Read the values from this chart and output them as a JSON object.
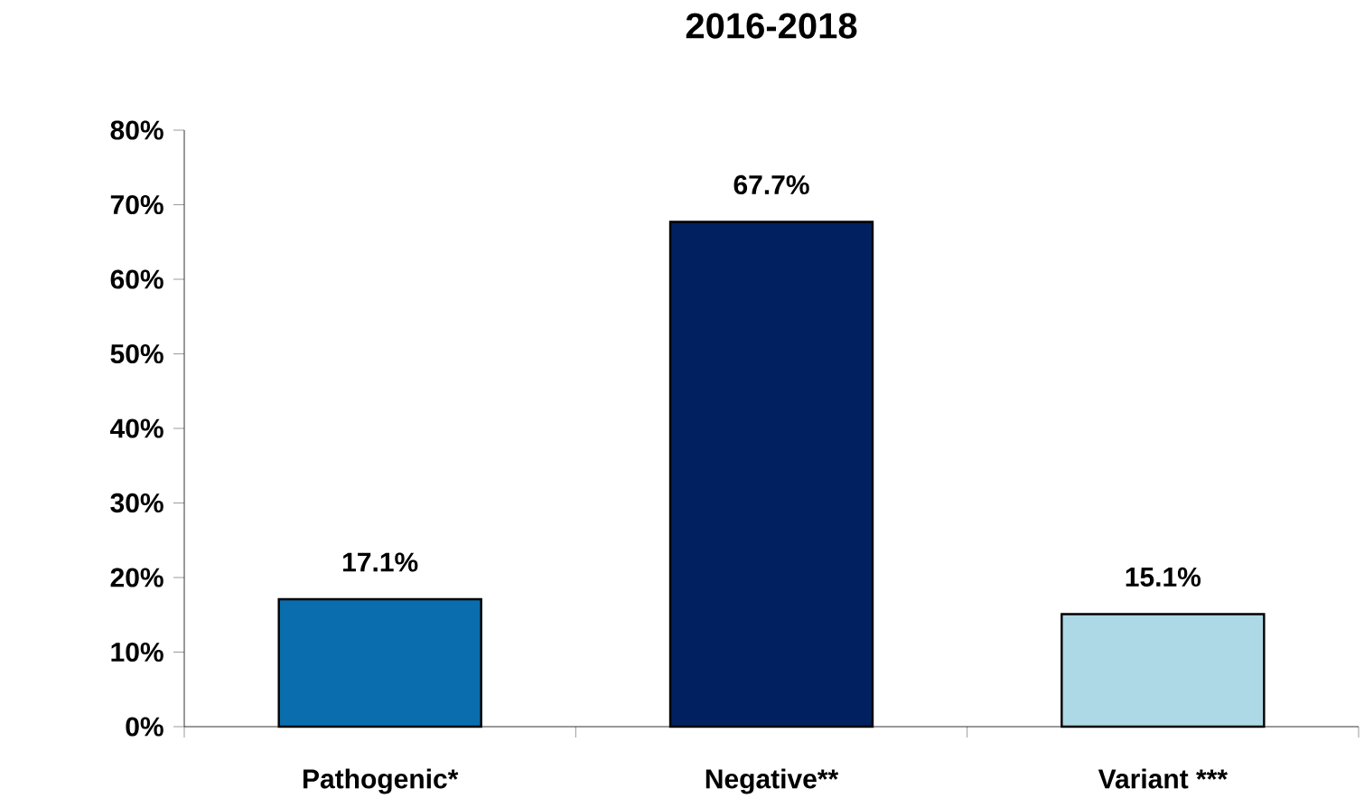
{
  "chart_data": {
    "type": "bar",
    "title": "2016-2018",
    "categories": [
      "Pathogenic*",
      "Negative**",
      "Variant ***"
    ],
    "values": [
      17.1,
      67.7,
      15.1
    ],
    "colors": [
      "#0a6eae",
      "#002060",
      "#add8e6"
    ],
    "value_labels": [
      "17.1%",
      "67.7%",
      "15.1%"
    ],
    "ylim": [
      0,
      80
    ],
    "yticks": [
      {
        "value": 0,
        "label": "0%"
      },
      {
        "value": 10,
        "label": "10%"
      },
      {
        "value": 20,
        "label": "20%"
      },
      {
        "value": 30,
        "label": "30%"
      },
      {
        "value": 40,
        "label": "40%"
      },
      {
        "value": 50,
        "label": "50%"
      },
      {
        "value": 60,
        "label": "60%"
      },
      {
        "value": 70,
        "label": "70%"
      },
      {
        "value": 80,
        "label": "80%"
      }
    ]
  }
}
